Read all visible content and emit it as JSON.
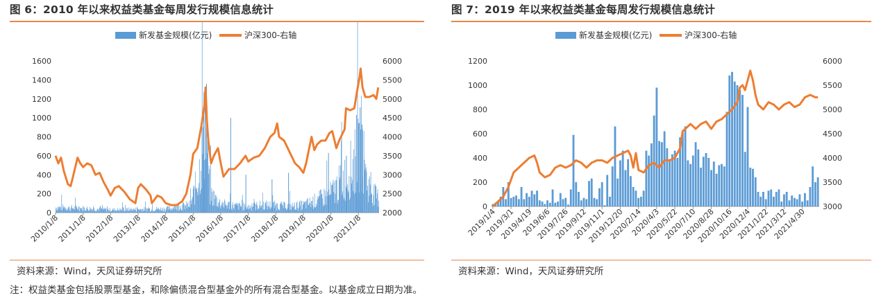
{
  "figures": [
    {
      "title": "图 6：2010 年以来权益类基金每周发行规模信息统计"
    },
    {
      "title": "图 7：2019 年以来权益类基金每周发行规模信息统计"
    }
  ],
  "source": "资料来源：Wind，天风证券研究所",
  "note": "注：权益类基金包括股票型基金，和除偏债混合型基金外的所有混合型基金。以基金成立日期为准。",
  "colors": {
    "bar": "#5b9bd5",
    "line": "#ed7d31",
    "accent": "#e8874a"
  },
  "chart_data": [
    {
      "type": "bar+line",
      "title": "",
      "legend": [
        "新发基金规模(亿元)",
        "沪深300-右轴"
      ],
      "legend_position": "top-center",
      "x_ticks": [
        "2010/1/8",
        "2011/1/8",
        "2012/1/8",
        "2013/1/8",
        "2014/1/8",
        "2015/1/8",
        "2016/1/8",
        "2017/1/8",
        "2018/1/8",
        "2019/1/8",
        "2020/1/8",
        "2021/1/8"
      ],
      "y_left": {
        "ticks": [
          0,
          200,
          400,
          600,
          800,
          1000,
          1200,
          1400,
          1600
        ],
        "range": [
          0,
          1600
        ]
      },
      "y_right": {
        "ticks": [
          2000,
          2500,
          3000,
          3500,
          4000,
          4500,
          5000,
          5500,
          6000
        ],
        "range": [
          2000,
          6000
        ]
      },
      "x_range": [
        2010.0,
        2021.75
      ],
      "bar_series": {
        "name": "新发基金规模(亿元)",
        "baseline_weekly": [
          [
            2010.0,
            55
          ],
          [
            2011.0,
            45
          ],
          [
            2012.0,
            30
          ],
          [
            2013.0,
            35
          ],
          [
            2014.0,
            40
          ],
          [
            2014.9,
            80
          ],
          [
            2015.2,
            400
          ],
          [
            2015.35,
            750
          ],
          [
            2015.45,
            1000
          ],
          [
            2015.6,
            200
          ],
          [
            2016.0,
            90
          ],
          [
            2016.5,
            70
          ],
          [
            2017.0,
            60
          ],
          [
            2017.5,
            80
          ],
          [
            2018.0,
            75
          ],
          [
            2018.5,
            65
          ],
          [
            2019.0,
            80
          ],
          [
            2019.5,
            130
          ],
          [
            2020.0,
            200
          ],
          [
            2020.3,
            300
          ],
          [
            2020.6,
            400
          ],
          [
            2021.0,
            600
          ],
          [
            2021.1,
            750
          ],
          [
            2021.3,
            300
          ],
          [
            2021.6,
            180
          ],
          [
            2021.75,
            150
          ]
        ],
        "peaks": [
          [
            2015.42,
            1250
          ],
          [
            2015.47,
            1360
          ],
          [
            2015.37,
            1050
          ],
          [
            2015.31,
            900
          ],
          [
            2016.35,
            1000
          ],
          [
            2016.9,
            400
          ],
          [
            2017.85,
            350
          ],
          [
            2018.45,
            420
          ],
          [
            2019.9,
            630
          ],
          [
            2020.55,
            600
          ],
          [
            2020.92,
            1030
          ],
          [
            2021.05,
            1110
          ],
          [
            2021.0,
            940
          ],
          [
            2021.12,
            930
          ]
        ]
      },
      "line_series": {
        "name": "沪深300-右轴",
        "points": [
          [
            2010.0,
            3500
          ],
          [
            2010.1,
            3300
          ],
          [
            2010.2,
            3450
          ],
          [
            2010.3,
            3100
          ],
          [
            2010.45,
            2750
          ],
          [
            2010.55,
            2700
          ],
          [
            2010.65,
            3000
          ],
          [
            2010.8,
            3450
          ],
          [
            2010.9,
            3300
          ],
          [
            2011.0,
            3200
          ],
          [
            2011.15,
            3300
          ],
          [
            2011.3,
            3250
          ],
          [
            2011.45,
            3000
          ],
          [
            2011.6,
            3050
          ],
          [
            2011.75,
            2800
          ],
          [
            2011.9,
            2600
          ],
          [
            2012.0,
            2450
          ],
          [
            2012.15,
            2650
          ],
          [
            2012.3,
            2700
          ],
          [
            2012.5,
            2550
          ],
          [
            2012.7,
            2350
          ],
          [
            2012.9,
            2250
          ],
          [
            2013.0,
            2650
          ],
          [
            2013.1,
            2750
          ],
          [
            2013.3,
            2600
          ],
          [
            2013.45,
            2450
          ],
          [
            2013.5,
            2250
          ],
          [
            2013.7,
            2450
          ],
          [
            2013.85,
            2400
          ],
          [
            2014.0,
            2250
          ],
          [
            2014.2,
            2200
          ],
          [
            2014.4,
            2200
          ],
          [
            2014.6,
            2300
          ],
          [
            2014.75,
            2500
          ],
          [
            2014.9,
            3000
          ],
          [
            2015.0,
            3550
          ],
          [
            2015.15,
            3700
          ],
          [
            2015.3,
            4300
          ],
          [
            2015.42,
            4900
          ],
          [
            2015.45,
            5300
          ],
          [
            2015.5,
            4400
          ],
          [
            2015.55,
            3900
          ],
          [
            2015.65,
            3300
          ],
          [
            2015.75,
            3500
          ],
          [
            2015.9,
            3700
          ],
          [
            2016.0,
            3300
          ],
          [
            2016.1,
            2950
          ],
          [
            2016.3,
            3150
          ],
          [
            2016.5,
            3150
          ],
          [
            2016.7,
            3300
          ],
          [
            2016.9,
            3500
          ],
          [
            2017.0,
            3350
          ],
          [
            2017.2,
            3450
          ],
          [
            2017.4,
            3500
          ],
          [
            2017.6,
            3700
          ],
          [
            2017.8,
            4000
          ],
          [
            2017.95,
            4100
          ],
          [
            2018.05,
            4350
          ],
          [
            2018.12,
            4000
          ],
          [
            2018.3,
            3900
          ],
          [
            2018.5,
            3600
          ],
          [
            2018.7,
            3300
          ],
          [
            2018.85,
            3200
          ],
          [
            2019.0,
            3050
          ],
          [
            2019.1,
            3300
          ],
          [
            2019.3,
            4000
          ],
          [
            2019.4,
            3650
          ],
          [
            2019.5,
            3800
          ],
          [
            2019.65,
            3900
          ],
          [
            2019.8,
            3900
          ],
          [
            2019.95,
            4100
          ],
          [
            2020.05,
            4150
          ],
          [
            2020.2,
            3700
          ],
          [
            2020.3,
            3900
          ],
          [
            2020.5,
            4200
          ],
          [
            2020.55,
            4750
          ],
          [
            2020.7,
            4700
          ],
          [
            2020.85,
            4750
          ],
          [
            2020.95,
            5200
          ],
          [
            2021.05,
            5600
          ],
          [
            2021.08,
            5800
          ],
          [
            2021.15,
            5300
          ],
          [
            2021.25,
            5050
          ],
          [
            2021.4,
            5050
          ],
          [
            2021.55,
            5100
          ],
          [
            2021.65,
            5000
          ],
          [
            2021.72,
            5300
          ]
        ]
      }
    },
    {
      "type": "bar+line",
      "title": "",
      "legend": [
        "新发基金规模(亿元)",
        "沪深300-右轴"
      ],
      "legend_position": "top-center",
      "x_ticks": [
        "2019/1/4",
        "2019/3/1",
        "2019/4/19",
        "2019/6/6",
        "2019/7/26",
        "2019/9/12",
        "2019/11/1",
        "2019/12/20",
        "2020/2/14",
        "2020/4/3",
        "2020/5/22",
        "2020/7/10",
        "2020/8/28",
        "2020/10/16",
        "2020/12/4",
        "2021/1/22",
        "2021/3/12",
        "2021/4/30"
      ],
      "y_left": {
        "ticks": [
          0,
          200,
          400,
          600,
          800,
          1000,
          1200
        ],
        "range": [
          0,
          1200
        ]
      },
      "y_right": {
        "ticks": [
          3000,
          3500,
          4000,
          4500,
          5000,
          5500,
          6000
        ],
        "range": [
          3000,
          6000
        ]
      },
      "x_range": [
        0,
        126
      ],
      "bar_series": {
        "name": "新发基金规模(亿元)",
        "values": [
          20,
          30,
          40,
          80,
          160,
          60,
          200,
          70,
          80,
          90,
          60,
          160,
          60,
          110,
          80,
          130,
          100,
          130,
          50,
          40,
          20,
          50,
          30,
          140,
          30,
          40,
          110,
          60,
          70,
          15,
          140,
          590,
          200,
          120,
          50,
          70,
          60,
          210,
          230,
          70,
          60,
          150,
          200,
          10,
          260,
          80,
          330,
          660,
          230,
          380,
          460,
          300,
          390,
          250,
          160,
          130,
          70,
          80,
          130,
          460,
          420,
          520,
          750,
          980,
          540,
          530,
          620,
          480,
          390,
          430,
          460,
          400,
          570,
          610,
          660,
          380,
          350,
          420,
          530,
          470,
          320,
          410,
          440,
          400,
          300,
          370,
          270,
          340,
          350,
          330,
          780,
          1080,
          1110,
          1030,
          1000,
          960,
          920,
          450,
          820,
          320,
          310,
          240,
          120,
          80,
          120,
          60,
          130,
          140,
          80,
          120,
          140,
          40,
          100,
          120,
          50,
          90,
          70,
          60,
          100,
          40,
          110,
          50,
          160,
          330,
          200,
          240
        ],
        "note": "weekly values indexed 0..125; last ticks 2021/4/30"
      },
      "line_series": {
        "name": "沪深300-右轴",
        "points": [
          [
            0,
            3000
          ],
          [
            2,
            3100
          ],
          [
            4,
            3200
          ],
          [
            6,
            3400
          ],
          [
            8,
            3700
          ],
          [
            10,
            3800
          ],
          [
            12,
            3900
          ],
          [
            14,
            4000
          ],
          [
            16,
            4050
          ],
          [
            17,
            3900
          ],
          [
            18,
            3700
          ],
          [
            20,
            3600
          ],
          [
            22,
            3650
          ],
          [
            24,
            3800
          ],
          [
            26,
            3850
          ],
          [
            28,
            3800
          ],
          [
            30,
            3850
          ],
          [
            32,
            3950
          ],
          [
            34,
            3900
          ],
          [
            36,
            3800
          ],
          [
            38,
            3900
          ],
          [
            40,
            3950
          ],
          [
            42,
            3950
          ],
          [
            44,
            3900
          ],
          [
            46,
            4000
          ],
          [
            48,
            4050
          ],
          [
            50,
            4100
          ],
          [
            52,
            4150
          ],
          [
            53,
            4050
          ],
          [
            54,
            3800
          ],
          [
            55,
            4100
          ],
          [
            56,
            3750
          ],
          [
            58,
            3700
          ],
          [
            60,
            3850
          ],
          [
            62,
            3900
          ],
          [
            64,
            3800
          ],
          [
            66,
            3950
          ],
          [
            68,
            3950
          ],
          [
            70,
            4000
          ],
          [
            72,
            4200
          ],
          [
            73,
            4550
          ],
          [
            74,
            4600
          ],
          [
            76,
            4700
          ],
          [
            78,
            4600
          ],
          [
            80,
            4700
          ],
          [
            82,
            4750
          ],
          [
            84,
            4600
          ],
          [
            86,
            4750
          ],
          [
            88,
            4800
          ],
          [
            90,
            4900
          ],
          [
            92,
            5000
          ],
          [
            94,
            5150
          ],
          [
            95,
            5450
          ],
          [
            96,
            5500
          ],
          [
            97,
            5400
          ],
          [
            98,
            5600
          ],
          [
            99,
            5800
          ],
          [
            100,
            5600
          ],
          [
            101,
            5300
          ],
          [
            102,
            5100
          ],
          [
            104,
            5000
          ],
          [
            106,
            5150
          ],
          [
            108,
            5100
          ],
          [
            110,
            5000
          ],
          [
            112,
            5100
          ],
          [
            114,
            5150
          ],
          [
            116,
            5050
          ],
          [
            118,
            5100
          ],
          [
            120,
            5250
          ],
          [
            122,
            5300
          ],
          [
            124,
            5250
          ],
          [
            125,
            5250
          ]
        ]
      }
    }
  ]
}
